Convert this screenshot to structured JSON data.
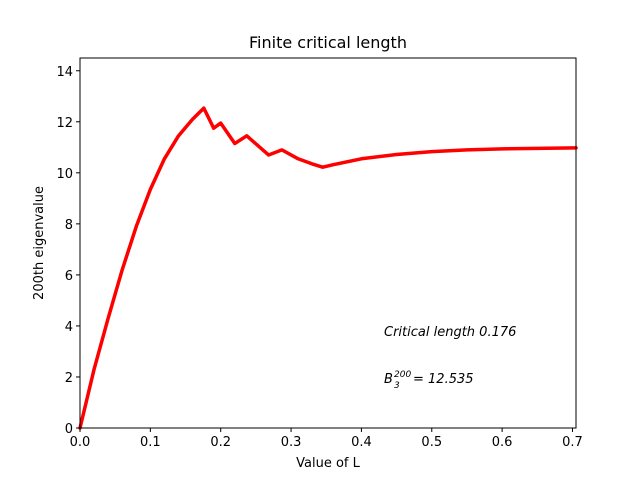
{
  "chart_data": {
    "type": "line",
    "title": "Finite critical length",
    "xlabel": "Value of L",
    "ylabel": "200th eigenvalue",
    "xlim": [
      0,
      0.705
    ],
    "ylim": [
      0,
      14.5
    ],
    "xticks": [
      "0.0",
      "0.1",
      "0.2",
      "0.3",
      "0.4",
      "0.5",
      "0.6",
      "0.7"
    ],
    "yticks": [
      "0",
      "2",
      "4",
      "6",
      "8",
      "10",
      "12",
      "14"
    ],
    "grid": false,
    "series": [
      {
        "color": "#ff0000",
        "x": [
          0.0,
          0.02,
          0.04,
          0.06,
          0.08,
          0.1,
          0.12,
          0.14,
          0.16,
          0.176,
          0.19,
          0.2,
          0.22,
          0.237,
          0.268,
          0.287,
          0.31,
          0.33,
          0.345,
          0.36,
          0.4,
          0.45,
          0.5,
          0.55,
          0.6,
          0.65,
          0.705
        ],
        "y": [
          0.0,
          2.3,
          4.3,
          6.2,
          7.9,
          9.35,
          10.55,
          11.45,
          12.1,
          12.535,
          11.75,
          11.95,
          11.15,
          11.45,
          10.7,
          10.9,
          10.55,
          10.35,
          10.22,
          10.32,
          10.55,
          10.72,
          10.83,
          10.9,
          10.94,
          10.96,
          10.98
        ]
      }
    ],
    "annotations": {
      "critical": "Critical length 0.176",
      "b_base": "B",
      "b_sub": "3",
      "b_sup": "200",
      "b_value": "= 12.535"
    }
  }
}
